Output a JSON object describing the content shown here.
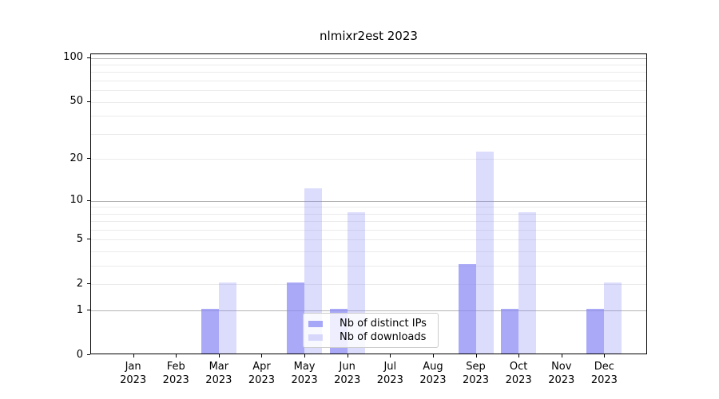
{
  "chart_data": {
    "type": "bar",
    "title": "nlmixr2est 2023",
    "categories": [
      "Jan 2023",
      "Feb 2023",
      "Mar 2023",
      "Apr 2023",
      "May 2023",
      "Jun 2023",
      "Jul 2023",
      "Aug 2023",
      "Sep 2023",
      "Oct 2023",
      "Nov 2023",
      "Dec 2023"
    ],
    "series": [
      {
        "name": "Nb of distinct IPs",
        "color": "rgba(136,136,245,0.72)",
        "values": [
          0,
          0,
          1,
          0,
          2,
          1,
          0,
          0,
          3,
          1,
          0,
          1
        ]
      },
      {
        "name": "Nb of downloads",
        "color": "rgba(136,136,245,0.29)",
        "values": [
          0,
          0,
          2,
          0,
          12,
          8,
          0,
          0,
          22,
          8,
          0,
          2
        ]
      }
    ],
    "yscale": "log1p",
    "ylim": [
      0,
      106
    ],
    "yticks": [
      0,
      1,
      2,
      5,
      10,
      20,
      50,
      100
    ],
    "minor_gridlines": [
      2,
      3,
      4,
      5,
      6,
      7,
      8,
      9,
      20,
      30,
      40,
      50,
      60,
      70,
      80,
      90
    ],
    "decade_gridlines": [
      1,
      10,
      100
    ],
    "grid": true,
    "legend_position": "lower center",
    "colors": {
      "grid_minor": "#ebebeb",
      "grid_decade": "#b4b4b4",
      "spine": "#000000",
      "text": "#000000",
      "legend_border": "#cccccc"
    }
  }
}
